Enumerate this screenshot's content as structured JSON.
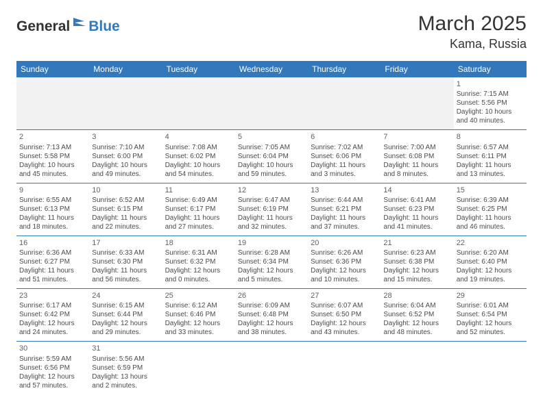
{
  "logo": {
    "general": "General",
    "blue": "Blue"
  },
  "title": "March 2025",
  "location": "Kama, Russia",
  "colors": {
    "header_bg": "#3478bc",
    "header_fg": "#ffffff",
    "empty_bg": "#f2f2f2",
    "row_border": "#3478bc",
    "text": "#4a4a4a",
    "logo_blue": "#3478bc",
    "logo_dark": "#333333"
  },
  "weekdays": [
    "Sunday",
    "Monday",
    "Tuesday",
    "Wednesday",
    "Thursday",
    "Friday",
    "Saturday"
  ],
  "weeks": [
    [
      {
        "empty": true
      },
      {
        "empty": true
      },
      {
        "empty": true
      },
      {
        "empty": true
      },
      {
        "empty": true
      },
      {
        "empty": true
      },
      {
        "day": "1",
        "sunrise": "Sunrise: 7:15 AM",
        "sunset": "Sunset: 5:56 PM",
        "dl1": "Daylight: 10 hours",
        "dl2": "and 40 minutes."
      }
    ],
    [
      {
        "day": "2",
        "sunrise": "Sunrise: 7:13 AM",
        "sunset": "Sunset: 5:58 PM",
        "dl1": "Daylight: 10 hours",
        "dl2": "and 45 minutes."
      },
      {
        "day": "3",
        "sunrise": "Sunrise: 7:10 AM",
        "sunset": "Sunset: 6:00 PM",
        "dl1": "Daylight: 10 hours",
        "dl2": "and 49 minutes."
      },
      {
        "day": "4",
        "sunrise": "Sunrise: 7:08 AM",
        "sunset": "Sunset: 6:02 PM",
        "dl1": "Daylight: 10 hours",
        "dl2": "and 54 minutes."
      },
      {
        "day": "5",
        "sunrise": "Sunrise: 7:05 AM",
        "sunset": "Sunset: 6:04 PM",
        "dl1": "Daylight: 10 hours",
        "dl2": "and 59 minutes."
      },
      {
        "day": "6",
        "sunrise": "Sunrise: 7:02 AM",
        "sunset": "Sunset: 6:06 PM",
        "dl1": "Daylight: 11 hours",
        "dl2": "and 3 minutes."
      },
      {
        "day": "7",
        "sunrise": "Sunrise: 7:00 AM",
        "sunset": "Sunset: 6:08 PM",
        "dl1": "Daylight: 11 hours",
        "dl2": "and 8 minutes."
      },
      {
        "day": "8",
        "sunrise": "Sunrise: 6:57 AM",
        "sunset": "Sunset: 6:11 PM",
        "dl1": "Daylight: 11 hours",
        "dl2": "and 13 minutes."
      }
    ],
    [
      {
        "day": "9",
        "sunrise": "Sunrise: 6:55 AM",
        "sunset": "Sunset: 6:13 PM",
        "dl1": "Daylight: 11 hours",
        "dl2": "and 18 minutes."
      },
      {
        "day": "10",
        "sunrise": "Sunrise: 6:52 AM",
        "sunset": "Sunset: 6:15 PM",
        "dl1": "Daylight: 11 hours",
        "dl2": "and 22 minutes."
      },
      {
        "day": "11",
        "sunrise": "Sunrise: 6:49 AM",
        "sunset": "Sunset: 6:17 PM",
        "dl1": "Daylight: 11 hours",
        "dl2": "and 27 minutes."
      },
      {
        "day": "12",
        "sunrise": "Sunrise: 6:47 AM",
        "sunset": "Sunset: 6:19 PM",
        "dl1": "Daylight: 11 hours",
        "dl2": "and 32 minutes."
      },
      {
        "day": "13",
        "sunrise": "Sunrise: 6:44 AM",
        "sunset": "Sunset: 6:21 PM",
        "dl1": "Daylight: 11 hours",
        "dl2": "and 37 minutes."
      },
      {
        "day": "14",
        "sunrise": "Sunrise: 6:41 AM",
        "sunset": "Sunset: 6:23 PM",
        "dl1": "Daylight: 11 hours",
        "dl2": "and 41 minutes."
      },
      {
        "day": "15",
        "sunrise": "Sunrise: 6:39 AM",
        "sunset": "Sunset: 6:25 PM",
        "dl1": "Daylight: 11 hours",
        "dl2": "and 46 minutes."
      }
    ],
    [
      {
        "day": "16",
        "sunrise": "Sunrise: 6:36 AM",
        "sunset": "Sunset: 6:27 PM",
        "dl1": "Daylight: 11 hours",
        "dl2": "and 51 minutes."
      },
      {
        "day": "17",
        "sunrise": "Sunrise: 6:33 AM",
        "sunset": "Sunset: 6:30 PM",
        "dl1": "Daylight: 11 hours",
        "dl2": "and 56 minutes."
      },
      {
        "day": "18",
        "sunrise": "Sunrise: 6:31 AM",
        "sunset": "Sunset: 6:32 PM",
        "dl1": "Daylight: 12 hours",
        "dl2": "and 0 minutes."
      },
      {
        "day": "19",
        "sunrise": "Sunrise: 6:28 AM",
        "sunset": "Sunset: 6:34 PM",
        "dl1": "Daylight: 12 hours",
        "dl2": "and 5 minutes."
      },
      {
        "day": "20",
        "sunrise": "Sunrise: 6:26 AM",
        "sunset": "Sunset: 6:36 PM",
        "dl1": "Daylight: 12 hours",
        "dl2": "and 10 minutes."
      },
      {
        "day": "21",
        "sunrise": "Sunrise: 6:23 AM",
        "sunset": "Sunset: 6:38 PM",
        "dl1": "Daylight: 12 hours",
        "dl2": "and 15 minutes."
      },
      {
        "day": "22",
        "sunrise": "Sunrise: 6:20 AM",
        "sunset": "Sunset: 6:40 PM",
        "dl1": "Daylight: 12 hours",
        "dl2": "and 19 minutes."
      }
    ],
    [
      {
        "day": "23",
        "sunrise": "Sunrise: 6:17 AM",
        "sunset": "Sunset: 6:42 PM",
        "dl1": "Daylight: 12 hours",
        "dl2": "and 24 minutes."
      },
      {
        "day": "24",
        "sunrise": "Sunrise: 6:15 AM",
        "sunset": "Sunset: 6:44 PM",
        "dl1": "Daylight: 12 hours",
        "dl2": "and 29 minutes."
      },
      {
        "day": "25",
        "sunrise": "Sunrise: 6:12 AM",
        "sunset": "Sunset: 6:46 PM",
        "dl1": "Daylight: 12 hours",
        "dl2": "and 33 minutes."
      },
      {
        "day": "26",
        "sunrise": "Sunrise: 6:09 AM",
        "sunset": "Sunset: 6:48 PM",
        "dl1": "Daylight: 12 hours",
        "dl2": "and 38 minutes."
      },
      {
        "day": "27",
        "sunrise": "Sunrise: 6:07 AM",
        "sunset": "Sunset: 6:50 PM",
        "dl1": "Daylight: 12 hours",
        "dl2": "and 43 minutes."
      },
      {
        "day": "28",
        "sunrise": "Sunrise: 6:04 AM",
        "sunset": "Sunset: 6:52 PM",
        "dl1": "Daylight: 12 hours",
        "dl2": "and 48 minutes."
      },
      {
        "day": "29",
        "sunrise": "Sunrise: 6:01 AM",
        "sunset": "Sunset: 6:54 PM",
        "dl1": "Daylight: 12 hours",
        "dl2": "and 52 minutes."
      }
    ],
    [
      {
        "day": "30",
        "sunrise": "Sunrise: 5:59 AM",
        "sunset": "Sunset: 6:56 PM",
        "dl1": "Daylight: 12 hours",
        "dl2": "and 57 minutes."
      },
      {
        "day": "31",
        "sunrise": "Sunrise: 5:56 AM",
        "sunset": "Sunset: 6:59 PM",
        "dl1": "Daylight: 13 hours",
        "dl2": "and 2 minutes."
      },
      {
        "empty": true
      },
      {
        "empty": true
      },
      {
        "empty": true
      },
      {
        "empty": true
      },
      {
        "empty": true
      }
    ]
  ]
}
